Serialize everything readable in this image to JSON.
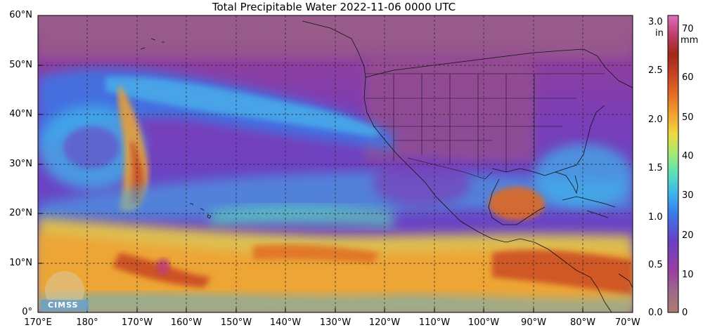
{
  "title": "Total Precipitable Water  2022-11-06 0000 UTC",
  "lat_labels": [
    "60°N",
    "50°N",
    "40°N",
    "30°N",
    "20°N",
    "10°N",
    "0°"
  ],
  "lon_labels": [
    "170°E",
    "180°",
    "170°W",
    "160°W",
    "150°W",
    "140°W",
    "130°W",
    "120°W",
    "110°W",
    "100°W",
    "90°W",
    "80°W",
    "70°W"
  ],
  "colorbar": {
    "in_unit": "in",
    "mm_unit": "mm",
    "in_ticks": [
      "3.0",
      "2.5",
      "2.0",
      "1.5",
      "1.0",
      "0.5",
      "0.0"
    ],
    "mm_ticks": [
      "70",
      "60",
      "50",
      "40",
      "30",
      "20",
      "10",
      "0"
    ],
    "colors": [
      "#b07a6c",
      "#9c3fa0",
      "#6a3fc4",
      "#3a78e8",
      "#3fb4ec",
      "#5ce0b8",
      "#a8ec6c",
      "#f0d840",
      "#f0a030",
      "#e06a24",
      "#c84424",
      "#a02818",
      "#c04070",
      "#e070c0"
    ]
  },
  "logo_text": "CIMSS",
  "chart_data": {
    "type": "heatmap",
    "title": "Total Precipitable Water  2022-11-06 0000 UTC",
    "colorbar_range_in": [
      0.0,
      3.0
    ],
    "colorbar_range_mm": [
      0,
      75
    ],
    "lat_range": [
      "0°",
      "60°N"
    ],
    "lon_range": [
      "170°E",
      "70°W"
    ]
  }
}
